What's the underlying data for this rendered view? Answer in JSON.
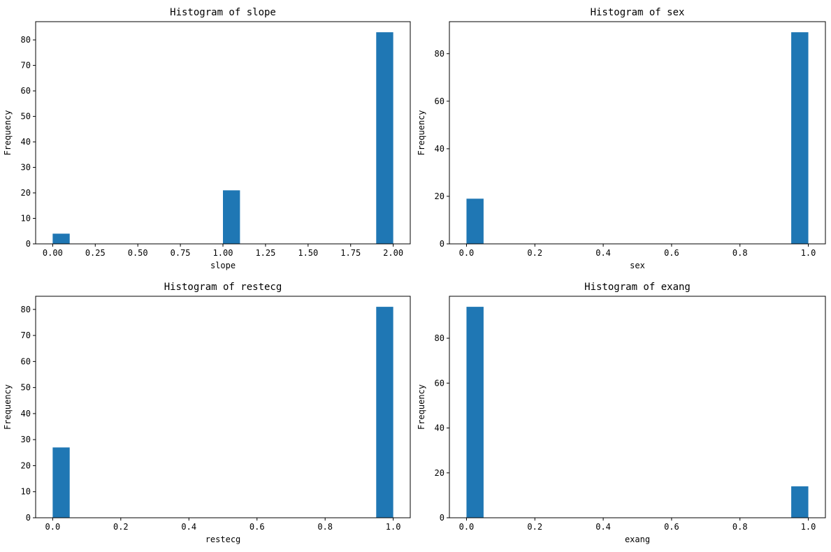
{
  "chart_data": [
    {
      "type": "bar",
      "title": "Histogram of slope",
      "xlabel": "slope",
      "ylabel": "Frequency",
      "xlim": [
        -0.1,
        2.1
      ],
      "ylim": [
        0,
        87.15
      ],
      "bin_width": 0.1,
      "bars": [
        {
          "x0": 0.0,
          "x1": 0.1,
          "value": 4
        },
        {
          "x0": 1.0,
          "x1": 1.1,
          "value": 21
        },
        {
          "x0": 1.9,
          "x1": 2.0,
          "value": 83
        }
      ],
      "xticks": [
        0.0,
        0.25,
        0.5,
        0.75,
        1.0,
        1.25,
        1.5,
        1.75,
        2.0
      ],
      "xtick_labels": [
        "0.00",
        "0.25",
        "0.50",
        "0.75",
        "1.00",
        "1.25",
        "1.50",
        "1.75",
        "2.00"
      ],
      "yticks": [
        0,
        10,
        20,
        30,
        40,
        50,
        60,
        70,
        80
      ],
      "ytick_labels": [
        "0",
        "10",
        "20",
        "30",
        "40",
        "50",
        "60",
        "70",
        "80"
      ],
      "grid": false
    },
    {
      "type": "bar",
      "title": "Histogram of sex",
      "xlabel": "sex",
      "ylabel": "Frequency",
      "xlim": [
        -0.05,
        1.05
      ],
      "ylim": [
        0,
        93.45
      ],
      "bin_width": 0.05,
      "bars": [
        {
          "x0": 0.0,
          "x1": 0.05,
          "value": 19
        },
        {
          "x0": 0.95,
          "x1": 1.0,
          "value": 89
        }
      ],
      "xticks": [
        0.0,
        0.2,
        0.4,
        0.6,
        0.8,
        1.0
      ],
      "xtick_labels": [
        "0.0",
        "0.2",
        "0.4",
        "0.6",
        "0.8",
        "1.0"
      ],
      "yticks": [
        0,
        20,
        40,
        60,
        80
      ],
      "ytick_labels": [
        "0",
        "20",
        "40",
        "60",
        "80"
      ],
      "grid": false
    },
    {
      "type": "bar",
      "title": "Histogram of restecg",
      "xlabel": "restecg",
      "ylabel": "Frequency",
      "xlim": [
        -0.05,
        1.05
      ],
      "ylim": [
        0,
        85.05
      ],
      "bin_width": 0.05,
      "bars": [
        {
          "x0": 0.0,
          "x1": 0.05,
          "value": 27
        },
        {
          "x0": 0.95,
          "x1": 1.0,
          "value": 81
        }
      ],
      "xticks": [
        0.0,
        0.2,
        0.4,
        0.6,
        0.8,
        1.0
      ],
      "xtick_labels": [
        "0.0",
        "0.2",
        "0.4",
        "0.6",
        "0.8",
        "1.0"
      ],
      "yticks": [
        0,
        10,
        20,
        30,
        40,
        50,
        60,
        70,
        80
      ],
      "ytick_labels": [
        "0",
        "10",
        "20",
        "30",
        "40",
        "50",
        "60",
        "70",
        "80"
      ],
      "grid": false
    },
    {
      "type": "bar",
      "title": "Histogram of exang",
      "xlabel": "exang",
      "ylabel": "Frequency",
      "xlim": [
        -0.05,
        1.05
      ],
      "ylim": [
        0,
        98.7
      ],
      "bin_width": 0.05,
      "bars": [
        {
          "x0": 0.0,
          "x1": 0.05,
          "value": 94
        },
        {
          "x0": 0.95,
          "x1": 1.0,
          "value": 14
        }
      ],
      "xticks": [
        0.0,
        0.2,
        0.4,
        0.6,
        0.8,
        1.0
      ],
      "xtick_labels": [
        "0.0",
        "0.2",
        "0.4",
        "0.6",
        "0.8",
        "1.0"
      ],
      "yticks": [
        0,
        20,
        40,
        60,
        80
      ],
      "ytick_labels": [
        "0",
        "20",
        "40",
        "60",
        "80"
      ],
      "grid": false
    }
  ],
  "colors": {
    "bar": "#1f77b4",
    "axis": "#000000",
    "background": "#ffffff"
  }
}
